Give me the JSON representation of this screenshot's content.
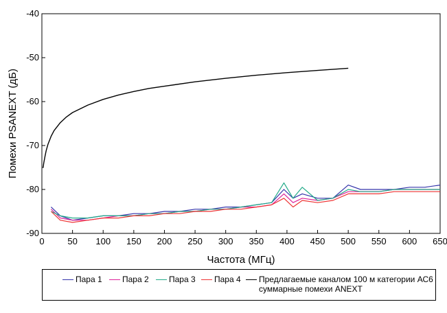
{
  "chart_data": {
    "type": "line",
    "title": "",
    "xlabel": "Частота (МГц)",
    "ylabel": "Помехи PSANEXT (дБ)",
    "xlim": [
      0,
      650
    ],
    "ylim": [
      -90,
      -40
    ],
    "x_ticks": [
      "0",
      "50",
      "100",
      "150",
      "200",
      "250",
      "300",
      "350",
      "400",
      "450",
      "500",
      "550",
      "600",
      "650"
    ],
    "y_ticks": [
      "-40",
      "-50",
      "-60",
      "-70",
      "-80",
      "-90"
    ],
    "series": [
      {
        "name": "Пара 1",
        "color": "#3333aa",
        "x": [
          15,
          30,
          50,
          75,
          100,
          125,
          150,
          175,
          200,
          225,
          250,
          275,
          300,
          325,
          350,
          375,
          395,
          410,
          425,
          450,
          475,
          500,
          520,
          550,
          575,
          600,
          625,
          650
        ],
        "y": [
          -84,
          -86,
          -87,
          -86.5,
          -86,
          -86,
          -85.5,
          -85.5,
          -85,
          -85,
          -84.5,
          -84.5,
          -84,
          -84,
          -83.5,
          -83,
          -80,
          -82,
          -81,
          -82,
          -82,
          -79,
          -80,
          -80,
          -80,
          -79.5,
          -79.5,
          -79
        ]
      },
      {
        "name": "Пара 2",
        "color": "#dd2299",
        "x": [
          15,
          30,
          50,
          75,
          100,
          125,
          150,
          175,
          200,
          225,
          250,
          275,
          300,
          325,
          350,
          375,
          395,
          410,
          425,
          450,
          475,
          500,
          520,
          550,
          575,
          600,
          625,
          650
        ],
        "y": [
          -84.5,
          -86.5,
          -87,
          -87,
          -86.5,
          -86,
          -86,
          -85.5,
          -85.5,
          -85,
          -85,
          -84.5,
          -84.5,
          -84,
          -84,
          -83.5,
          -81,
          -83,
          -82,
          -82.5,
          -82,
          -80.5,
          -80.5,
          -80.5,
          -80,
          -80,
          -80,
          -80
        ]
      },
      {
        "name": "Пара 3",
        "color": "#22aa88",
        "x": [
          15,
          30,
          50,
          75,
          100,
          125,
          150,
          175,
          200,
          225,
          250,
          275,
          300,
          325,
          350,
          375,
          395,
          410,
          425,
          450,
          475,
          500,
          520,
          550,
          575,
          600,
          625,
          650
        ],
        "y": [
          -85,
          -86,
          -86.5,
          -86.5,
          -86,
          -86,
          -86,
          -85.5,
          -85.5,
          -85,
          -85,
          -84.5,
          -84.5,
          -84,
          -83.5,
          -83,
          -78.5,
          -82,
          -79.5,
          -82.5,
          -82,
          -80,
          -80.5,
          -80.5,
          -80,
          -80,
          -80,
          -80
        ]
      },
      {
        "name": "Пара 4",
        "color": "#ee3333",
        "x": [
          15,
          30,
          50,
          75,
          100,
          125,
          150,
          175,
          200,
          225,
          250,
          275,
          300,
          325,
          350,
          375,
          395,
          410,
          425,
          450,
          475,
          500,
          520,
          550,
          575,
          600,
          625,
          650
        ],
        "y": [
          -85,
          -87,
          -87.5,
          -87,
          -86.5,
          -86.5,
          -86,
          -86,
          -85.5,
          -85.5,
          -85,
          -85,
          -84.5,
          -84.5,
          -84,
          -83.5,
          -82,
          -84,
          -82.5,
          -83,
          -82.5,
          -81,
          -81,
          -81,
          -80.5,
          -80.5,
          -80.5,
          -80.5
        ]
      },
      {
        "name": "Предлагаемые каналом 100 м категории АС6 суммарные помехи ANEXT",
        "color": "#000000",
        "x": [
          1,
          2,
          3,
          5,
          7,
          10,
          15,
          20,
          30,
          40,
          50,
          75,
          100,
          125,
          150,
          175,
          200,
          250,
          300,
          350,
          400,
          450,
          500
        ],
        "y": [
          -75,
          -75,
          -74,
          -72.5,
          -71.2,
          -69.7,
          -67.9,
          -66.6,
          -64.8,
          -63.5,
          -62.5,
          -60.8,
          -59.5,
          -58.5,
          -57.7,
          -57,
          -56.5,
          -55.5,
          -54.7,
          -54,
          -53.4,
          -52.9,
          -52.4
        ]
      }
    ]
  }
}
